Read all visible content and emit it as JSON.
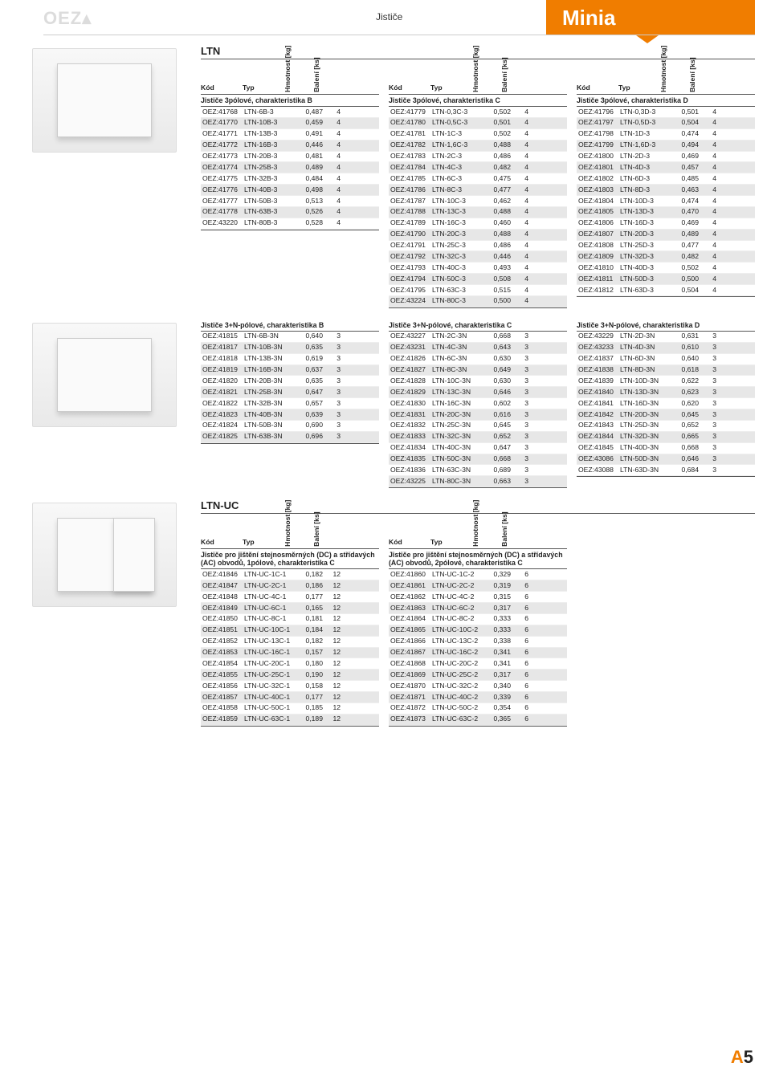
{
  "brand": "OEZ▴",
  "header_center": "Jističe",
  "header_right": "Minia",
  "page_number_prefix": "A",
  "page_number": "5",
  "section1_title": "LTN",
  "col_labels": {
    "kod": "Kód",
    "typ": "Typ",
    "hmotnost": "Hmotnost [kg]",
    "baleni": "Balení [ks]"
  },
  "tableB": {
    "subheader": "Jističe 3pólové, charakteristika B",
    "rows": [
      [
        "OEZ:41768",
        "LTN-6B-3",
        "0,487",
        "4"
      ],
      [
        "OEZ:41770",
        "LTN-10B-3",
        "0,459",
        "4"
      ],
      [
        "OEZ:41771",
        "LTN-13B-3",
        "0,491",
        "4"
      ],
      [
        "OEZ:41772",
        "LTN-16B-3",
        "0,446",
        "4"
      ],
      [
        "OEZ:41773",
        "LTN-20B-3",
        "0,481",
        "4"
      ],
      [
        "OEZ:41774",
        "LTN-25B-3",
        "0,489",
        "4"
      ],
      [
        "OEZ:41775",
        "LTN-32B-3",
        "0,484",
        "4"
      ],
      [
        "OEZ:41776",
        "LTN-40B-3",
        "0,498",
        "4"
      ],
      [
        "OEZ:41777",
        "LTN-50B-3",
        "0,513",
        "4"
      ],
      [
        "OEZ:41778",
        "LTN-63B-3",
        "0,526",
        "4"
      ],
      [
        "OEZ:43220",
        "LTN-80B-3",
        "0,528",
        "4"
      ]
    ]
  },
  "tableC": {
    "subheader": "Jističe 3pólové, charakteristika C",
    "rows": [
      [
        "OEZ:41779",
        "LTN-0,3C-3",
        "0,502",
        "4"
      ],
      [
        "OEZ:41780",
        "LTN-0,5C-3",
        "0,501",
        "4"
      ],
      [
        "OEZ:41781",
        "LTN-1C-3",
        "0,502",
        "4"
      ],
      [
        "OEZ:41782",
        "LTN-1,6C-3",
        "0,488",
        "4"
      ],
      [
        "OEZ:41783",
        "LTN-2C-3",
        "0,486",
        "4"
      ],
      [
        "OEZ:41784",
        "LTN-4C-3",
        "0,482",
        "4"
      ],
      [
        "OEZ:41785",
        "LTN-6C-3",
        "0,475",
        "4"
      ],
      [
        "OEZ:41786",
        "LTN-8C-3",
        "0,477",
        "4"
      ],
      [
        "OEZ:41787",
        "LTN-10C-3",
        "0,462",
        "4"
      ],
      [
        "OEZ:41788",
        "LTN-13C-3",
        "0,488",
        "4"
      ],
      [
        "OEZ:41789",
        "LTN-16C-3",
        "0,460",
        "4"
      ],
      [
        "OEZ:41790",
        "LTN-20C-3",
        "0,488",
        "4"
      ],
      [
        "OEZ:41791",
        "LTN-25C-3",
        "0,486",
        "4"
      ],
      [
        "OEZ:41792",
        "LTN-32C-3",
        "0,446",
        "4"
      ],
      [
        "OEZ:41793",
        "LTN-40C-3",
        "0,493",
        "4"
      ],
      [
        "OEZ:41794",
        "LTN-50C-3",
        "0,508",
        "4"
      ],
      [
        "OEZ:41795",
        "LTN-63C-3",
        "0,515",
        "4"
      ],
      [
        "OEZ:43224",
        "LTN-80C-3",
        "0,500",
        "4"
      ]
    ]
  },
  "tableD": {
    "subheader": "Jističe 3pólové, charakteristika D",
    "rows": [
      [
        "OEZ:41796",
        "LTN-0,3D-3",
        "0,501",
        "4"
      ],
      [
        "OEZ:41797",
        "LTN-0,5D-3",
        "0,504",
        "4"
      ],
      [
        "OEZ:41798",
        "LTN-1D-3",
        "0,474",
        "4"
      ],
      [
        "OEZ:41799",
        "LTN-1,6D-3",
        "0,494",
        "4"
      ],
      [
        "OEZ:41800",
        "LTN-2D-3",
        "0,469",
        "4"
      ],
      [
        "OEZ:41801",
        "LTN-4D-3",
        "0,457",
        "4"
      ],
      [
        "OEZ:41802",
        "LTN-6D-3",
        "0,485",
        "4"
      ],
      [
        "OEZ:41803",
        "LTN-8D-3",
        "0,463",
        "4"
      ],
      [
        "OEZ:41804",
        "LTN-10D-3",
        "0,474",
        "4"
      ],
      [
        "OEZ:41805",
        "LTN-13D-3",
        "0,470",
        "4"
      ],
      [
        "OEZ:41806",
        "LTN-16D-3",
        "0,469",
        "4"
      ],
      [
        "OEZ:41807",
        "LTN-20D-3",
        "0,489",
        "4"
      ],
      [
        "OEZ:41808",
        "LTN-25D-3",
        "0,477",
        "4"
      ],
      [
        "OEZ:41809",
        "LTN-32D-3",
        "0,482",
        "4"
      ],
      [
        "OEZ:41810",
        "LTN-40D-3",
        "0,502",
        "4"
      ],
      [
        "OEZ:41811",
        "LTN-50D-3",
        "0,500",
        "4"
      ],
      [
        "OEZ:41812",
        "LTN-63D-3",
        "0,504",
        "4"
      ]
    ]
  },
  "table3NB": {
    "subheader": "Jističe 3+N-pólové, charakteristika B",
    "rows": [
      [
        "OEZ:41815",
        "LTN-6B-3N",
        "0,640",
        "3"
      ],
      [
        "OEZ:41817",
        "LTN-10B-3N",
        "0,635",
        "3"
      ],
      [
        "OEZ:41818",
        "LTN-13B-3N",
        "0,619",
        "3"
      ],
      [
        "OEZ:41819",
        "LTN-16B-3N",
        "0,637",
        "3"
      ],
      [
        "OEZ:41820",
        "LTN-20B-3N",
        "0,635",
        "3"
      ],
      [
        "OEZ:41821",
        "LTN-25B-3N",
        "0,647",
        "3"
      ],
      [
        "OEZ:41822",
        "LTN-32B-3N",
        "0,657",
        "3"
      ],
      [
        "OEZ:41823",
        "LTN-40B-3N",
        "0,639",
        "3"
      ],
      [
        "OEZ:41824",
        "LTN-50B-3N",
        "0,690",
        "3"
      ],
      [
        "OEZ:41825",
        "LTN-63B-3N",
        "0,696",
        "3"
      ]
    ]
  },
  "table3NC": {
    "subheader": "Jističe 3+N-pólové, charakteristika C",
    "rows": [
      [
        "OEZ:43227",
        "LTN-2C-3N",
        "0,668",
        "3"
      ],
      [
        "OEZ:43231",
        "LTN-4C-3N",
        "0,643",
        "3"
      ],
      [
        "OEZ:41826",
        "LTN-6C-3N",
        "0,630",
        "3"
      ],
      [
        "OEZ:41827",
        "LTN-8C-3N",
        "0,649",
        "3"
      ],
      [
        "OEZ:41828",
        "LTN-10C-3N",
        "0,630",
        "3"
      ],
      [
        "OEZ:41829",
        "LTN-13C-3N",
        "0,646",
        "3"
      ],
      [
        "OEZ:41830",
        "LTN-16C-3N",
        "0,602",
        "3"
      ],
      [
        "OEZ:41831",
        "LTN-20C-3N",
        "0,616",
        "3"
      ],
      [
        "OEZ:41832",
        "LTN-25C-3N",
        "0,645",
        "3"
      ],
      [
        "OEZ:41833",
        "LTN-32C-3N",
        "0,652",
        "3"
      ],
      [
        "OEZ:41834",
        "LTN-40C-3N",
        "0,647",
        "3"
      ],
      [
        "OEZ:41835",
        "LTN-50C-3N",
        "0,668",
        "3"
      ],
      [
        "OEZ:41836",
        "LTN-63C-3N",
        "0,689",
        "3"
      ],
      [
        "OEZ:43225",
        "LTN-80C-3N",
        "0,663",
        "3"
      ]
    ]
  },
  "table3ND": {
    "subheader": "Jističe 3+N-pólové, charakteristika D",
    "rows": [
      [
        "OEZ:43229",
        "LTN-2D-3N",
        "0,631",
        "3"
      ],
      [
        "OEZ:43233",
        "LTN-4D-3N",
        "0,610",
        "3"
      ],
      [
        "OEZ:41837",
        "LTN-6D-3N",
        "0,640",
        "3"
      ],
      [
        "OEZ:41838",
        "LTN-8D-3N",
        "0,618",
        "3"
      ],
      [
        "OEZ:41839",
        "LTN-10D-3N",
        "0,622",
        "3"
      ],
      [
        "OEZ:41840",
        "LTN-13D-3N",
        "0,623",
        "3"
      ],
      [
        "OEZ:41841",
        "LTN-16D-3N",
        "0,620",
        "3"
      ],
      [
        "OEZ:41842",
        "LTN-20D-3N",
        "0,645",
        "3"
      ],
      [
        "OEZ:41843",
        "LTN-25D-3N",
        "0,652",
        "3"
      ],
      [
        "OEZ:41844",
        "LTN-32D-3N",
        "0,665",
        "3"
      ],
      [
        "OEZ:41845",
        "LTN-40D-3N",
        "0,668",
        "3"
      ],
      [
        "OEZ:43086",
        "LTN-50D-3N",
        "0,646",
        "3"
      ],
      [
        "OEZ:43088",
        "LTN-63D-3N",
        "0,684",
        "3"
      ]
    ]
  },
  "section2_title": "LTN-UC",
  "tableUC1": {
    "subheader": "Jističe pro jištění stejnosměrných (DC) a střídavých (AC) obvodů, 1pólové, charakteristika C",
    "rows": [
      [
        "OEZ:41846",
        "LTN-UC-1C-1",
        "0,182",
        "12"
      ],
      [
        "OEZ:41847",
        "LTN-UC-2C-1",
        "0,186",
        "12"
      ],
      [
        "OEZ:41848",
        "LTN-UC-4C-1",
        "0,177",
        "12"
      ],
      [
        "OEZ:41849",
        "LTN-UC-6C-1",
        "0,165",
        "12"
      ],
      [
        "OEZ:41850",
        "LTN-UC-8C-1",
        "0,181",
        "12"
      ],
      [
        "OEZ:41851",
        "LTN-UC-10C-1",
        "0,184",
        "12"
      ],
      [
        "OEZ:41852",
        "LTN-UC-13C-1",
        "0,182",
        "12"
      ],
      [
        "OEZ:41853",
        "LTN-UC-16C-1",
        "0,157",
        "12"
      ],
      [
        "OEZ:41854",
        "LTN-UC-20C-1",
        "0,180",
        "12"
      ],
      [
        "OEZ:41855",
        "LTN-UC-25C-1",
        "0,190",
        "12"
      ],
      [
        "OEZ:41856",
        "LTN-UC-32C-1",
        "0,158",
        "12"
      ],
      [
        "OEZ:41857",
        "LTN-UC-40C-1",
        "0,177",
        "12"
      ],
      [
        "OEZ:41858",
        "LTN-UC-50C-1",
        "0,185",
        "12"
      ],
      [
        "OEZ:41859",
        "LTN-UC-63C-1",
        "0,189",
        "12"
      ]
    ]
  },
  "tableUC2": {
    "subheader": "Jističe pro jištění stejnosměrných (DC) a střídavých (AC) obvodů, 2pólové, charakteristika C",
    "rows": [
      [
        "OEZ:41860",
        "LTN-UC-1C-2",
        "0,329",
        "6"
      ],
      [
        "OEZ:41861",
        "LTN-UC-2C-2",
        "0,319",
        "6"
      ],
      [
        "OEZ:41862",
        "LTN-UC-4C-2",
        "0,315",
        "6"
      ],
      [
        "OEZ:41863",
        "LTN-UC-6C-2",
        "0,317",
        "6"
      ],
      [
        "OEZ:41864",
        "LTN-UC-8C-2",
        "0,333",
        "6"
      ],
      [
        "OEZ:41865",
        "LTN-UC-10C-2",
        "0,333",
        "6"
      ],
      [
        "OEZ:41866",
        "LTN-UC-13C-2",
        "0,338",
        "6"
      ],
      [
        "OEZ:41867",
        "LTN-UC-16C-2",
        "0,341",
        "6"
      ],
      [
        "OEZ:41868",
        "LTN-UC-20C-2",
        "0,341",
        "6"
      ],
      [
        "OEZ:41869",
        "LTN-UC-25C-2",
        "0,317",
        "6"
      ],
      [
        "OEZ:41870",
        "LTN-UC-32C-2",
        "0,340",
        "6"
      ],
      [
        "OEZ:41871",
        "LTN-UC-40C-2",
        "0,339",
        "6"
      ],
      [
        "OEZ:41872",
        "LTN-UC-50C-2",
        "0,354",
        "6"
      ],
      [
        "OEZ:41873",
        "LTN-UC-63C-2",
        "0,365",
        "6"
      ]
    ]
  }
}
